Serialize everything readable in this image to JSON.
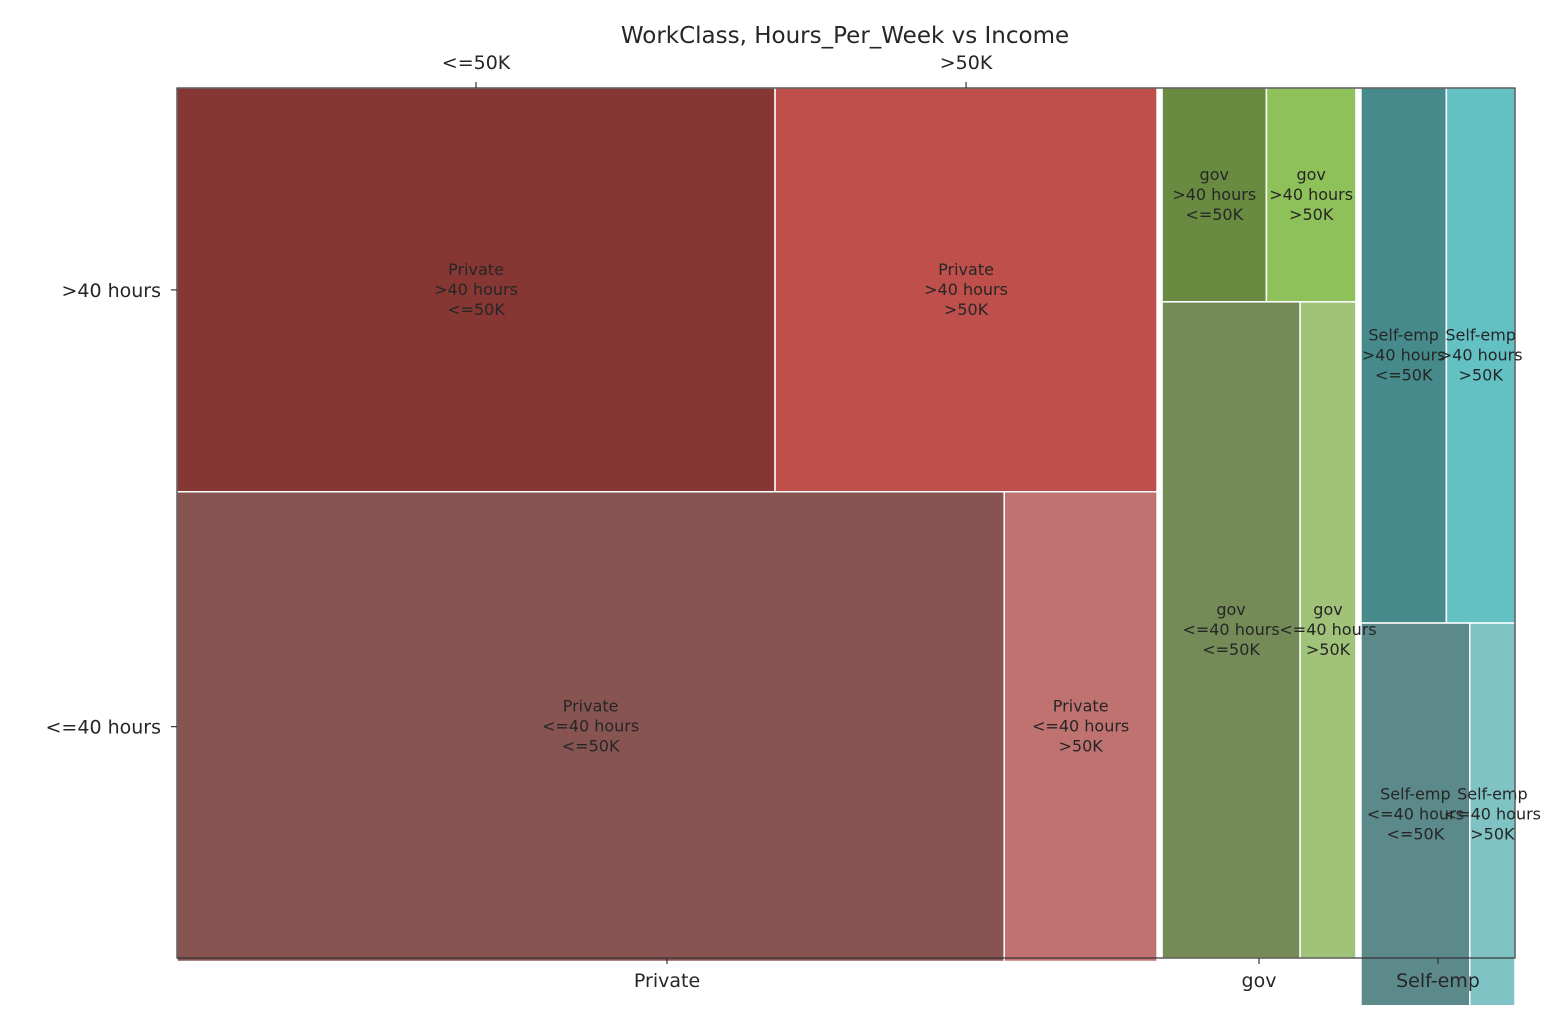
{
  "chart_data": {
    "type": "mosaic",
    "title": "WorkClass, Hours_Per_Week vs Income",
    "x_categories": [
      "Private",
      "gov",
      "Self-emp"
    ],
    "y_categories": [
      ">40 hours",
      "<=40 hours"
    ],
    "top_categories": [
      "<=50K",
      ">50K"
    ],
    "x_shares": {
      "Private": 0.738,
      "gov": 0.146,
      "Self-emp": 0.116
    },
    "cells": [
      {
        "workclass": "Private",
        "hours": ">40 hours",
        "income": "<=50K",
        "share_of_workclass": 0.2832,
        "label": "Private\n>40 hours\n<=50K",
        "color": "#863734"
      },
      {
        "workclass": "Private",
        "hours": ">40 hours",
        "income": ">50K",
        "share_of_workclass": 0.1809,
        "label": "Private\n>40 hours\n>50K",
        "color": "#bf4f4b"
      },
      {
        "workclass": "Private",
        "hours": "<=40 hours",
        "income": "<=50K",
        "share_of_workclass": 0.4557,
        "label": "Private\n<=40 hours\n<=50K",
        "color": "#875452"
      },
      {
        "workclass": "Private",
        "hours": "<=40 hours",
        "income": ">50K",
        "share_of_workclass": 0.0842,
        "label": "Private\n<=40 hours\n>50K",
        "color": "#bf7270"
      },
      {
        "workclass": "gov",
        "hours": ">40 hours",
        "income": "<=50K",
        "share_of_workclass": 0.1323,
        "label": "gov\n>40 hours\n<=50K",
        "color": "#698b41"
      },
      {
        "workclass": "gov",
        "hours": ">40 hours",
        "income": ">50K",
        "share_of_workclass": 0.1135,
        "label": "gov\n>40 hours\n>50K",
        "color": "#8fc15b"
      },
      {
        "workclass": "gov",
        "hours": "<=40 hours",
        "income": "<=50K",
        "share_of_workclass": 0.5369,
        "label": "gov\n<=40 hours\n<=50K",
        "color": "#748b57"
      },
      {
        "workclass": "gov",
        "hours": "<=40 hours",
        "income": ">50K",
        "share_of_workclass": 0.2173,
        "label": "gov\n<=40 hours\n>50K",
        "color": "#a0c379"
      },
      {
        "workclass": "Self-emp",
        "hours": ">40 hours",
        "income": "<=50K",
        "share_of_workclass": 0.341,
        "label": "Self-emp\n>40 hours\n<=50K",
        "color": "#468a8b"
      },
      {
        "workclass": "Self-emp",
        "hours": ">40 hours",
        "income": ">50K",
        "share_of_workclass": 0.274,
        "label": "Self-emp\n>40 hours\n>50K",
        "color": "#63c1c4"
      },
      {
        "workclass": "Self-emp",
        "hours": "<=40 hours",
        "income": "<=50K",
        "share_of_workclass": 0.3108,
        "label": "Self-emp\n<=40 hours\n<=50K",
        "color": "#5c898a"
      },
      {
        "workclass": "Self-emp",
        "hours": "<=40 hours",
        "income": ">50K",
        "share_of_workclass": 0.1291,
        "label": "Self-emp\n<=40 hours\n>50K",
        "color": "#7fc3c4"
      }
    ]
  }
}
